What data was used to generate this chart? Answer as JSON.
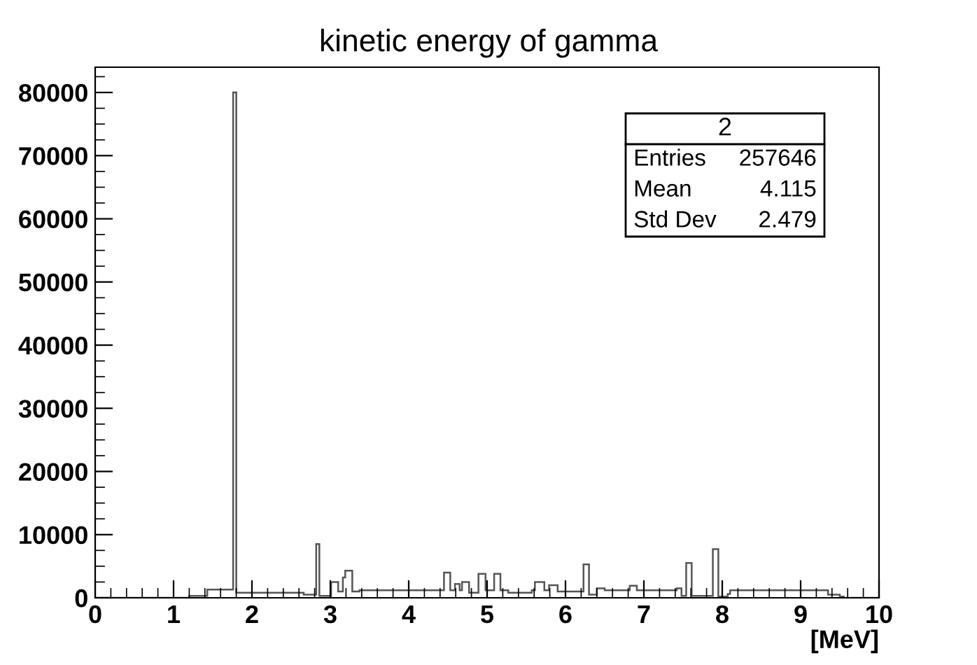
{
  "chart_data": {
    "type": "histogram",
    "title": "kinetic energy of gamma",
    "xlabel": "[MeV]",
    "bins": [
      0,
      1.2,
      1.43,
      1.76,
      1.8,
      2.66,
      2.82,
      2.86,
      3.01,
      3.1,
      3.16,
      3.19,
      3.28,
      3.37,
      4.45,
      4.53,
      4.59,
      4.65,
      4.68,
      4.77,
      4.89,
      4.98,
      5.09,
      5.17,
      5.27,
      5.57,
      5.61,
      5.73,
      5.79,
      5.9,
      6.23,
      6.3,
      6.4,
      6.5,
      6.82,
      6.91,
      7.42,
      7.48,
      7.54,
      7.61,
      7.88,
      7.95,
      8.07,
      8.1,
      9.35,
      9.5,
      9.55,
      10
    ],
    "values": [
      0,
      300,
      1300,
      80000,
      800,
      500,
      8500,
      300,
      2500,
      1000,
      3200,
      4300,
      1000,
      1200,
      4000,
      1200,
      2200,
      1200,
      2500,
      800,
      3800,
      1200,
      3800,
      1200,
      800,
      1200,
      2500,
      1200,
      2000,
      1000,
      5300,
      500,
      1500,
      1200,
      1900,
      1200,
      1500,
      300,
      5500,
      300,
      7700,
      200,
      600,
      1200,
      500,
      200,
      0
    ],
    "color": "#555555",
    "xlim": [
      0,
      10
    ],
    "ylim": [
      0,
      84000
    ],
    "xticks": [
      0,
      1,
      2,
      3,
      4,
      5,
      6,
      7,
      8,
      9,
      10
    ],
    "yticks": [
      0,
      10000,
      20000,
      30000,
      40000,
      50000,
      60000,
      70000,
      80000
    ],
    "grid": false,
    "annotations": [
      "2",
      "Entries",
      "257646",
      "Mean",
      "4.115",
      "Std Dev",
      "2.479"
    ]
  }
}
